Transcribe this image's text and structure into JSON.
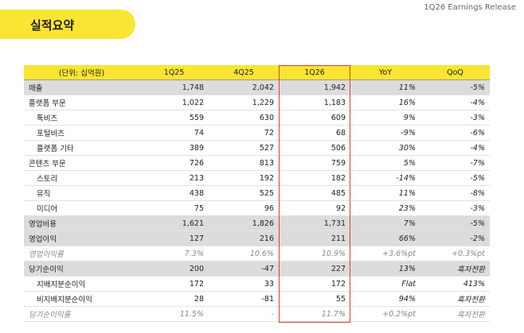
{
  "header": {
    "title": "실적요약",
    "report": "1Q26 Earnings Release"
  },
  "table": {
    "columns": [
      "(단위: 십억원)",
      "1Q25",
      "4Q25",
      "1Q26",
      "YoY",
      "QoQ"
    ],
    "rows": [
      [
        "매출",
        "1,748",
        "2,042",
        "1,942",
        "11%",
        "-5%"
      ],
      [
        "플랫폼 부문",
        "1,022",
        "1,229",
        "1,183",
        "16%",
        "-4%"
      ],
      [
        "톡비즈",
        "559",
        "630",
        "609",
        "9%",
        "-3%"
      ],
      [
        "포털비즈",
        "74",
        "72",
        "68",
        "-9%",
        "-6%"
      ],
      [
        "플랫폼 기타",
        "389",
        "527",
        "506",
        "30%",
        "-4%"
      ],
      [
        "콘텐츠 부문",
        "726",
        "813",
        "759",
        "5%",
        "-7%"
      ],
      [
        "스토리",
        "213",
        "192",
        "182",
        "-14%",
        "-5%"
      ],
      [
        "뮤직",
        "438",
        "525",
        "485",
        "11%",
        "-8%"
      ],
      [
        "미디어",
        "75",
        "96",
        "92",
        "23%",
        "-3%"
      ],
      [
        "영업비용",
        "1,621",
        "1,826",
        "1,731",
        "7%",
        "-5%"
      ],
      [
        "영업이익",
        "127",
        "216",
        "211",
        "66%",
        "-2%"
      ],
      [
        "영업이익률",
        "7.3%",
        "10.6%",
        "10.9%",
        "+3.6%pt",
        "+0.3%pt"
      ],
      [
        "당기순이익",
        "200",
        "-47",
        "227",
        "13%",
        "흑자전환"
      ],
      [
        "지배지분순이익",
        "172",
        "33",
        "172",
        "Flat",
        "413%"
      ],
      [
        "비지배지분순이익",
        "28",
        "-81",
        "55",
        "94%",
        "흑자전환"
      ],
      [
        "당기순이익률",
        "11.5%",
        "-",
        "11.7%",
        "+0.2%pt",
        "흑자전환"
      ]
    ]
  }
}
